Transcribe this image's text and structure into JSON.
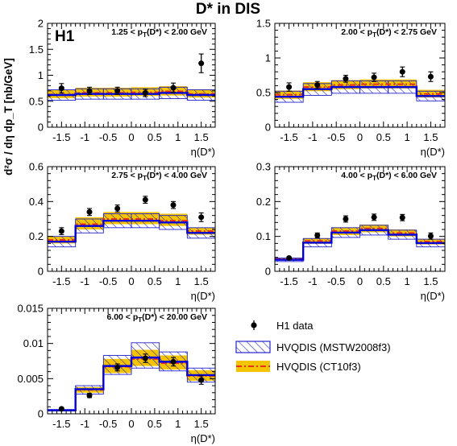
{
  "title": "D* in DIS",
  "ylabel": "d²σ / dη dp_T [nb/GeV]",
  "experiment_label": "H1",
  "legend": {
    "data": "H1 data",
    "mstw": "HVQDIS (MSTW2008f3)",
    "ct10": "HVQDIS (CT10f3)"
  },
  "colors": {
    "mstw_line": "#0000dd",
    "mstw_hatch": "#2222cc",
    "ct10_band": "#f5c400",
    "ct10_line": "#e8301a",
    "data": "#000000"
  },
  "chart_data": [
    {
      "type": "line",
      "label_parts": [
        "1.25 < p",
        "T",
        "(D*) < 2.00 GeV"
      ],
      "xlabel": "η(D*)",
      "xlim": [
        -1.8,
        1.8
      ],
      "ylim": [
        0,
        2
      ],
      "yticks": [
        "0",
        "0.5",
        "1",
        "1.5",
        "2"
      ],
      "xticks": [
        "-1.5",
        "-1",
        "-0.5",
        "0",
        "0.5",
        "1",
        "1.5"
      ],
      "bin_edges": [
        -1.8,
        -1.2,
        -0.6,
        0.0,
        0.6,
        1.2,
        1.8
      ],
      "data_x": [
        -1.5,
        -0.9,
        -0.3,
        0.3,
        0.9,
        1.5
      ],
      "data_y": [
        0.75,
        0.7,
        0.7,
        0.66,
        0.76,
        1.23
      ],
      "data_err": [
        0.09,
        0.07,
        0.07,
        0.07,
        0.09,
        0.18
      ],
      "mstw_central": [
        0.62,
        0.64,
        0.64,
        0.64,
        0.66,
        0.62
      ],
      "mstw_low": [
        0.52,
        0.54,
        0.54,
        0.54,
        0.55,
        0.52
      ],
      "mstw_high": [
        0.72,
        0.74,
        0.74,
        0.74,
        0.77,
        0.72
      ],
      "ct10_central": [
        0.63,
        0.66,
        0.66,
        0.67,
        0.69,
        0.64
      ],
      "ct10_low": [
        0.56,
        0.59,
        0.59,
        0.6,
        0.61,
        0.57
      ],
      "ct10_high": [
        0.72,
        0.76,
        0.76,
        0.77,
        0.79,
        0.73
      ],
      "show_experiment_label": true
    },
    {
      "type": "line",
      "label_parts": [
        "2.00 < p",
        "T",
        "(D*) < 2.75 GeV"
      ],
      "xlabel": "η(D*)",
      "xlim": [
        -1.8,
        1.8
      ],
      "ylim": [
        0,
        1.5
      ],
      "yticks": [
        "0",
        "0.5",
        "1",
        "1.5"
      ],
      "xticks": [
        "-1.5",
        "-1",
        "-0.5",
        "0",
        "0.5",
        "1",
        "1.5"
      ],
      "bin_edges": [
        -1.8,
        -1.2,
        -0.6,
        0.0,
        0.6,
        1.2,
        1.8
      ],
      "data_x": [
        -1.5,
        -0.9,
        -0.3,
        0.3,
        0.9,
        1.5
      ],
      "data_y": [
        0.58,
        0.61,
        0.7,
        0.72,
        0.8,
        0.73
      ],
      "data_err": [
        0.06,
        0.05,
        0.05,
        0.06,
        0.07,
        0.07
      ],
      "mstw_central": [
        0.44,
        0.55,
        0.58,
        0.58,
        0.58,
        0.45
      ],
      "mstw_low": [
        0.36,
        0.46,
        0.49,
        0.49,
        0.49,
        0.38
      ],
      "mstw_high": [
        0.52,
        0.63,
        0.67,
        0.67,
        0.67,
        0.52
      ],
      "ct10_central": [
        0.47,
        0.58,
        0.61,
        0.62,
        0.62,
        0.48
      ],
      "ct10_low": [
        0.41,
        0.52,
        0.55,
        0.56,
        0.56,
        0.43
      ],
      "ct10_high": [
        0.53,
        0.65,
        0.68,
        0.69,
        0.69,
        0.54
      ],
      "show_experiment_label": false
    },
    {
      "type": "line",
      "label_parts": [
        "2.75 < p",
        "T",
        "(D*) < 4.00 GeV"
      ],
      "xlabel": "η(D*)",
      "xlim": [
        -1.8,
        1.8
      ],
      "ylim": [
        0,
        0.6
      ],
      "yticks": [
        "0",
        "0.2",
        "0.4",
        "0.6"
      ],
      "xticks": [
        "-1.5",
        "-1",
        "-0.5",
        "0",
        "0.5",
        "1",
        "1.5"
      ],
      "bin_edges": [
        -1.8,
        -1.2,
        -0.6,
        0.0,
        0.6,
        1.2,
        1.8
      ],
      "data_x": [
        -1.5,
        -0.9,
        -0.3,
        0.3,
        0.9,
        1.5
      ],
      "data_y": [
        0.23,
        0.34,
        0.36,
        0.41,
        0.38,
        0.31
      ],
      "data_err": [
        0.02,
        0.02,
        0.02,
        0.02,
        0.02,
        0.025
      ],
      "mstw_central": [
        0.17,
        0.26,
        0.29,
        0.29,
        0.28,
        0.22
      ],
      "mstw_low": [
        0.14,
        0.22,
        0.25,
        0.25,
        0.24,
        0.19
      ],
      "mstw_high": [
        0.2,
        0.3,
        0.33,
        0.33,
        0.32,
        0.25
      ],
      "ct10_central": [
        0.18,
        0.27,
        0.3,
        0.3,
        0.29,
        0.23
      ],
      "ct10_low": [
        0.16,
        0.24,
        0.27,
        0.27,
        0.26,
        0.21
      ],
      "ct10_high": [
        0.2,
        0.31,
        0.34,
        0.34,
        0.33,
        0.25
      ],
      "show_experiment_label": false
    },
    {
      "type": "line",
      "label_parts": [
        "4.00 < p",
        "T",
        "(D*) < 6.00 GeV"
      ],
      "xlabel": "η(D*)",
      "xlim": [
        -1.8,
        1.8
      ],
      "ylim": [
        0,
        0.3
      ],
      "yticks": [
        "0",
        "0.1",
        "0.2",
        "0.3"
      ],
      "xticks": [
        "-1.5",
        "-1",
        "-0.5",
        "0",
        "0.5",
        "1",
        "1.5"
      ],
      "bin_edges": [
        -1.8,
        -1.2,
        -0.6,
        0.0,
        0.6,
        1.2,
        1.8
      ],
      "data_x": [
        -1.5,
        -0.9,
        -0.3,
        0.3,
        0.9,
        1.5
      ],
      "data_y": [
        0.038,
        0.103,
        0.15,
        0.155,
        0.154,
        0.101
      ],
      "data_err": [
        0.004,
        0.007,
        0.009,
        0.009,
        0.009,
        0.009
      ],
      "mstw_central": [
        0.033,
        0.082,
        0.111,
        0.118,
        0.105,
        0.081
      ],
      "mstw_low": [
        0.028,
        0.07,
        0.097,
        0.104,
        0.092,
        0.07
      ],
      "mstw_high": [
        0.038,
        0.094,
        0.125,
        0.132,
        0.118,
        0.092
      ],
      "ct10_central": [
        0.035,
        0.087,
        0.115,
        0.123,
        0.11,
        0.085
      ],
      "ct10_low": [
        0.031,
        0.079,
        0.104,
        0.112,
        0.1,
        0.077
      ],
      "ct10_high": [
        0.039,
        0.095,
        0.126,
        0.134,
        0.12,
        0.093
      ],
      "show_experiment_label": false
    },
    {
      "type": "line",
      "label_parts": [
        "6.00 < p",
        "T",
        "(D*) < 20.00 GeV"
      ],
      "xlabel": "η(D*)",
      "xlim": [
        -1.8,
        1.8
      ],
      "ylim": [
        0,
        0.015
      ],
      "yticks": [
        "0",
        "0.005",
        "0.01",
        "0.015"
      ],
      "xticks": [
        "-1.5",
        "-1",
        "-0.5",
        "0",
        "0.5",
        "1",
        "1.5"
      ],
      "bin_edges": [
        -1.8,
        -1.2,
        -0.6,
        0.0,
        0.6,
        1.2,
        1.8
      ],
      "data_x": [
        -1.5,
        -0.9,
        -0.3,
        0.3,
        0.9,
        1.5
      ],
      "data_y": [
        0.0007,
        0.0026,
        0.0066,
        0.0079,
        0.0074,
        0.0048
      ],
      "data_err": [
        0.0002,
        0.0003,
        0.0005,
        0.0006,
        0.0006,
        0.0006
      ],
      "mstw_central": [
        0.0005,
        0.0035,
        0.0068,
        0.008,
        0.0074,
        0.0055
      ],
      "mstw_low": [
        0.0004,
        0.0028,
        0.0056,
        0.0065,
        0.0061,
        0.0045
      ],
      "mstw_high": [
        0.0006,
        0.004,
        0.0083,
        0.0101,
        0.0088,
        0.0065
      ],
      "ct10_central": [
        0.0005,
        0.0034,
        0.0067,
        0.0078,
        0.0072,
        0.0054
      ],
      "ct10_low": [
        0.0004,
        0.003,
        0.0058,
        0.0068,
        0.0063,
        0.0047
      ],
      "ct10_high": [
        0.0006,
        0.0038,
        0.0078,
        0.0091,
        0.0083,
        0.0062
      ],
      "show_experiment_label": false
    }
  ]
}
